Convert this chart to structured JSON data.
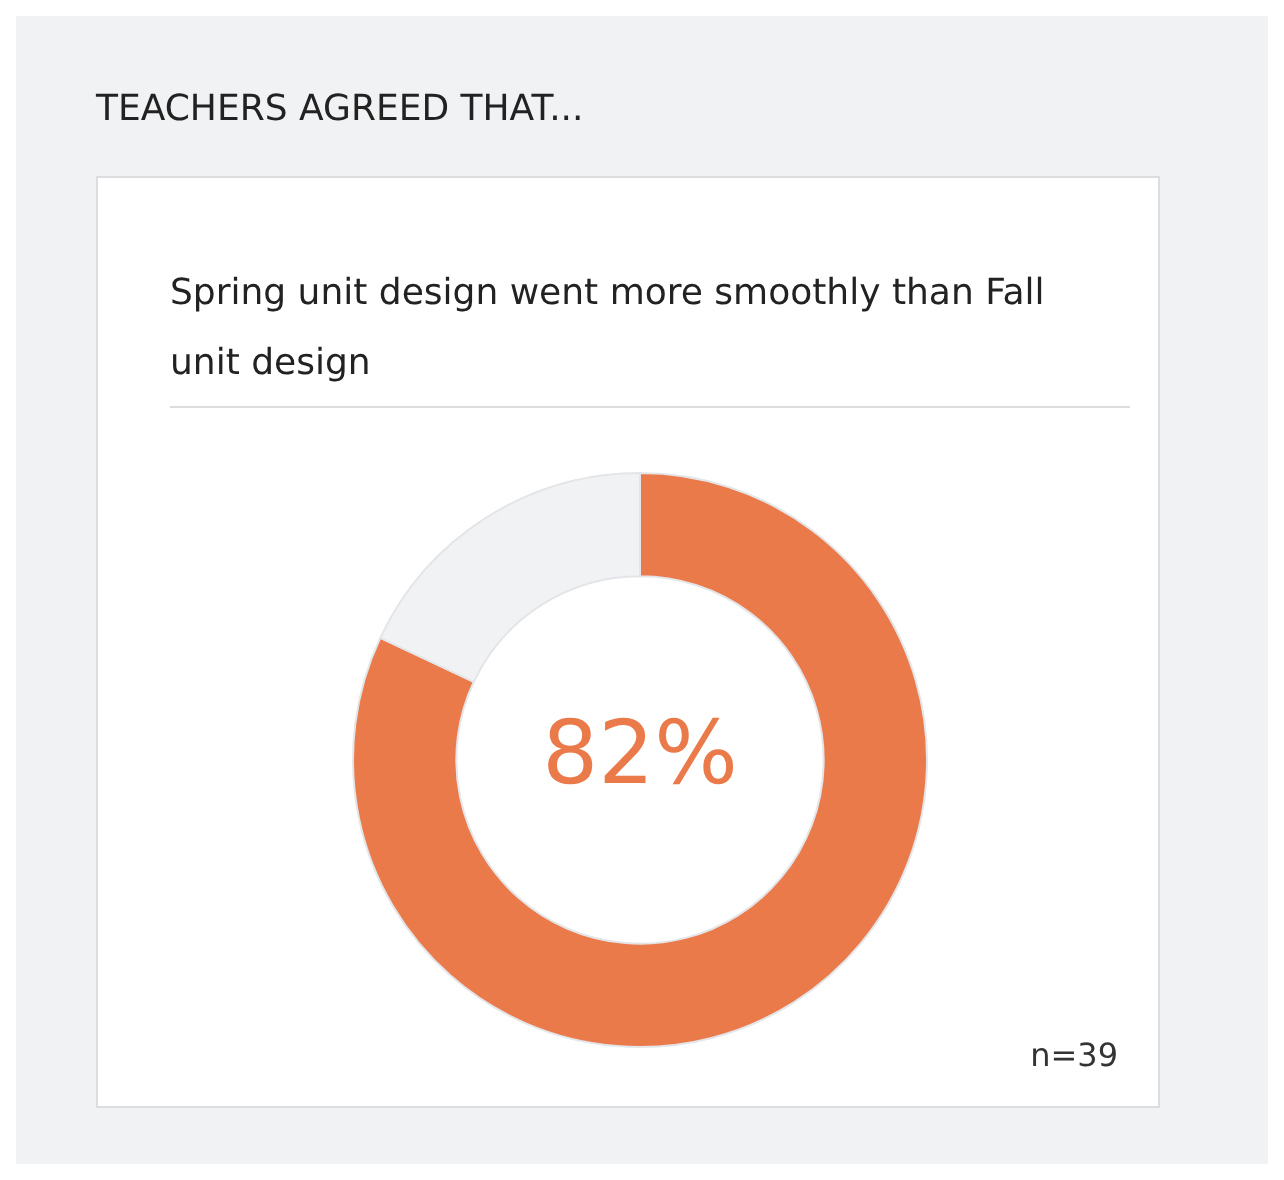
{
  "chart_data": {
    "type": "donut",
    "title": "TEACHERS AGREED THAT...",
    "subtitle": "Spring unit design went more smoothly than Fall unit design",
    "categories": [
      null,
      null
    ],
    "values": [
      82,
      18
    ],
    "colors": [
      "#eb7a4b",
      "#f1f2f4"
    ],
    "value_labels": [
      "82%",
      null
    ],
    "legend": false,
    "annotations": [
      "n=39"
    ]
  }
}
